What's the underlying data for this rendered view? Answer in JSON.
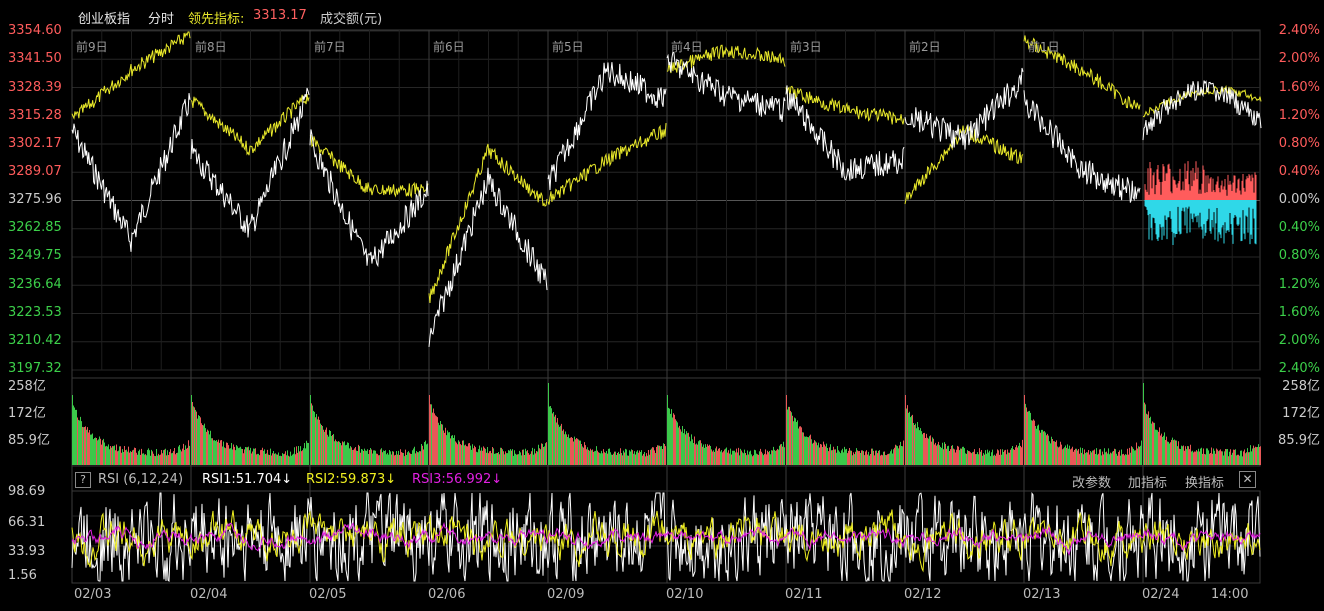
{
  "header": {
    "title": "创业板指",
    "mode": "分时",
    "lead_label": "领先指标:",
    "lead_value": "3313.17",
    "volume_label": "成交额(元)"
  },
  "colors": {
    "price_line": "#ffffff",
    "lead_line": "#e8e82a",
    "up": "#ff5c5c",
    "down": "#2fd8e8",
    "grid": "#2a2a2a",
    "rsi1": "#ffffff",
    "rsi2": "#f0f020",
    "rsi3": "#e020e0",
    "vol_up": "#e85858",
    "vol_down": "#3cc84a"
  },
  "price_axis": {
    "left_ticks": [
      "3354.60",
      "3341.50",
      "3328.39",
      "3315.28",
      "3302.17",
      "3289.07",
      "3275.96",
      "3262.85",
      "3249.75",
      "3236.64",
      "3223.53",
      "3210.42",
      "3197.32"
    ],
    "right_ticks": [
      "2.40%",
      "2.00%",
      "1.60%",
      "1.20%",
      "0.80%",
      "0.40%",
      "0.00%",
      "0.40%",
      "0.80%",
      "1.20%",
      "1.60%",
      "2.00%",
      "2.40%"
    ]
  },
  "day_labels": [
    "前9日",
    "前8日",
    "前7日",
    "前6日",
    "前5日",
    "前4日",
    "前3日",
    "前2日",
    "前1日"
  ],
  "volume_axis": {
    "ticks": [
      "258亿",
      "172亿",
      "85.9亿"
    ]
  },
  "rsi_panel": {
    "question_icon": "?",
    "name": "RSI (6,12,24)",
    "rsi1": "RSI1:51.704↓",
    "rsi2": "RSI2:59.873↓",
    "rsi3": "RSI3:56.992↓",
    "btn_params": "改参数",
    "btn_add": "加指标",
    "btn_switch": "换指标",
    "close_icon": "✕",
    "ticks": [
      "98.69",
      "66.31",
      "33.93",
      "1.56"
    ]
  },
  "x_axis": {
    "labels": [
      "02/03",
      "02/04",
      "02/05",
      "02/06",
      "02/09",
      "02/10",
      "02/11",
      "02/12",
      "02/13",
      "02/24",
      "14:00"
    ]
  }
}
